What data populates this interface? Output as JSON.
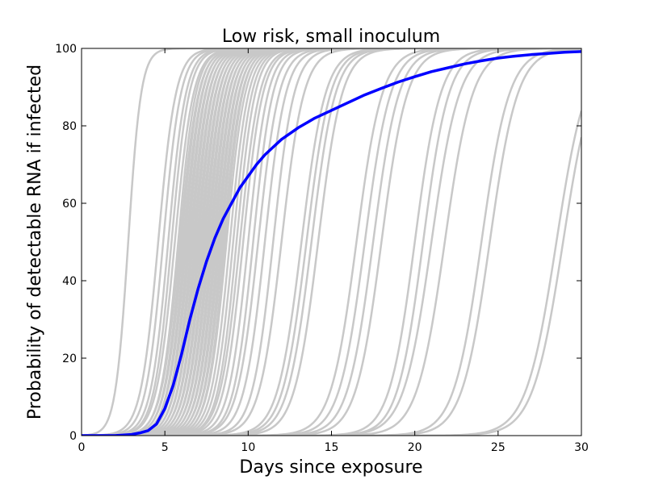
{
  "chart_data": {
    "type": "line",
    "title": "Low risk, small inoculum",
    "xlabel": "Days since exposure",
    "ylabel": "Probability of detectable RNA if infected",
    "xlim": [
      0,
      30
    ],
    "ylim": [
      0,
      100
    ],
    "xticks": [
      0,
      5,
      10,
      15,
      20,
      25,
      30
    ],
    "yticks": [
      0,
      20,
      40,
      60,
      80,
      100
    ],
    "grid": false,
    "colors": {
      "mean": "#0000ff",
      "samples": "#c8c8c8",
      "axis": "#000000"
    },
    "sample_curves": {
      "description_shape": "logistic",
      "midpoints": [
        2.8,
        4.6,
        4.9,
        5.2,
        5.4,
        5.6,
        5.8,
        5.9,
        6.0,
        6.1,
        6.2,
        6.3,
        6.4,
        6.5,
        6.6,
        6.7,
        6.8,
        6.9,
        7.0,
        7.1,
        7.2,
        7.3,
        7.4,
        7.5,
        7.6,
        7.7,
        7.8,
        7.9,
        8.0,
        8.1,
        8.2,
        8.3,
        8.4,
        8.5,
        8.6,
        8.7,
        8.9,
        9.1,
        9.3,
        9.5,
        9.7,
        10.0,
        10.3,
        10.6,
        11.0,
        11.5,
        12.0,
        13.2,
        13.5,
        13.8,
        14.2,
        16.5,
        17.0,
        17.5,
        18.0,
        20.0,
        20.5,
        21.0,
        21.8,
        24.0,
        24.5,
        28.5,
        28.9
      ],
      "slopes": [
        2.6,
        1.9,
        1.9,
        1.9,
        1.9,
        1.8,
        1.9,
        1.8,
        1.9,
        1.8,
        1.9,
        1.8,
        1.9,
        1.8,
        1.9,
        1.8,
        1.9,
        1.8,
        1.9,
        1.8,
        1.9,
        1.8,
        1.9,
        1.8,
        1.9,
        1.8,
        1.9,
        1.8,
        1.9,
        1.8,
        1.9,
        1.8,
        1.9,
        1.8,
        1.9,
        1.8,
        1.8,
        1.8,
        1.8,
        1.7,
        1.7,
        1.7,
        1.7,
        1.6,
        1.6,
        1.6,
        1.5,
        1.4,
        1.4,
        1.4,
        1.4,
        1.3,
        1.3,
        1.3,
        1.3,
        1.3,
        1.3,
        1.2,
        1.2,
        1.2,
        1.2,
        1.1,
        1.1
      ]
    },
    "series": [
      {
        "name": "mean",
        "x": [
          0,
          1,
          2,
          3,
          3.5,
          4,
          4.5,
          5,
          5.5,
          6,
          6.5,
          7,
          7.5,
          8,
          8.5,
          9,
          9.5,
          10,
          10.5,
          11,
          11.5,
          12,
          13,
          14,
          15,
          16,
          17,
          18,
          19,
          20,
          21,
          22,
          23,
          24,
          25,
          26,
          27,
          28,
          29,
          30
        ],
        "y": [
          0,
          0,
          0,
          0.3,
          0.7,
          1.3,
          3,
          7,
          13,
          21,
          30,
          38,
          45,
          51,
          56,
          60,
          64,
          67,
          70,
          72.5,
          74.5,
          76.5,
          79.5,
          82,
          84,
          86,
          88,
          89.7,
          91.3,
          92.7,
          94,
          95,
          96,
          96.8,
          97.5,
          98,
          98.4,
          98.7,
          99,
          99.2
        ]
      }
    ]
  }
}
